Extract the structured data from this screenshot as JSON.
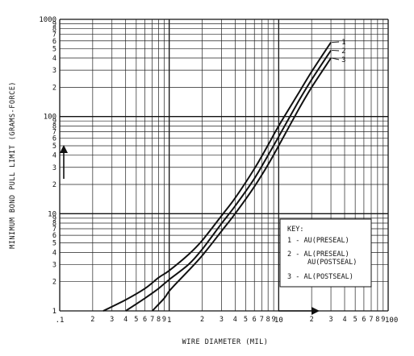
{
  "chart_data": {
    "type": "line",
    "xlabel": "WIRE DIAMETER (MIL)",
    "ylabel": "MINIMUM BOND PULL LIMIT (GRAMS-FORCE)",
    "x_scale": "log",
    "y_scale": "log",
    "xlim": [
      0.1,
      100
    ],
    "ylim": [
      1,
      1000
    ],
    "grid": true,
    "x_major_ticks": [
      {
        "value": 0.1,
        "label": ".1"
      },
      {
        "value": 1,
        "label": "1"
      },
      {
        "value": 10,
        "label": "10"
      },
      {
        "value": 100,
        "label": "100"
      }
    ],
    "x_minor_labels": [
      "2",
      "3",
      "4",
      "5",
      "6",
      "7",
      "8",
      "9"
    ],
    "y_major_ticks": [
      {
        "value": 1,
        "label": "1"
      },
      {
        "value": 10,
        "label": "10"
      },
      {
        "value": 100,
        "label": "100"
      },
      {
        "value": 1000,
        "label": "1000"
      }
    ],
    "y_minor_labels": [
      "2",
      "3",
      "4",
      "5",
      "6",
      "7",
      "8",
      "9"
    ],
    "series": [
      {
        "name": "1",
        "x": [
          0.25,
          0.4,
          0.6,
          0.8,
          1,
          1.5,
          2,
          3,
          4,
          6,
          8,
          10,
          15,
          20,
          30
        ],
        "y": [
          1,
          1.3,
          1.7,
          2.2,
          2.6,
          3.8,
          5.3,
          9.5,
          14.5,
          29,
          51,
          80,
          170,
          290,
          580
        ]
      },
      {
        "name": "2",
        "x": [
          0.4,
          0.6,
          0.8,
          1,
          1.5,
          2,
          3,
          4,
          6,
          8,
          10,
          15,
          20,
          30
        ],
        "y": [
          1,
          1.35,
          1.7,
          2.1,
          3,
          4.3,
          7.9,
          12,
          23,
          40,
          62,
          140,
          240,
          480
        ]
      },
      {
        "name": "3",
        "x": [
          0.7,
          0.9,
          1,
          1.2,
          1.5,
          2,
          3,
          4,
          6,
          8,
          10,
          15,
          20,
          30
        ],
        "y": [
          1,
          1.35,
          1.6,
          2,
          2.6,
          3.7,
          6.6,
          10,
          19,
          32,
          50,
          115,
          200,
          400
        ]
      }
    ],
    "key": {
      "title": "KEY:",
      "entries": [
        {
          "lines": [
            "1 - AU(PRESEAL)"
          ]
        },
        {
          "lines": [
            "2 - AL(PRESEAL)",
            "AU(POSTSEAL)"
          ]
        },
        {
          "lines": [
            "3 - AL(POSTSEAL)"
          ]
        }
      ]
    }
  }
}
